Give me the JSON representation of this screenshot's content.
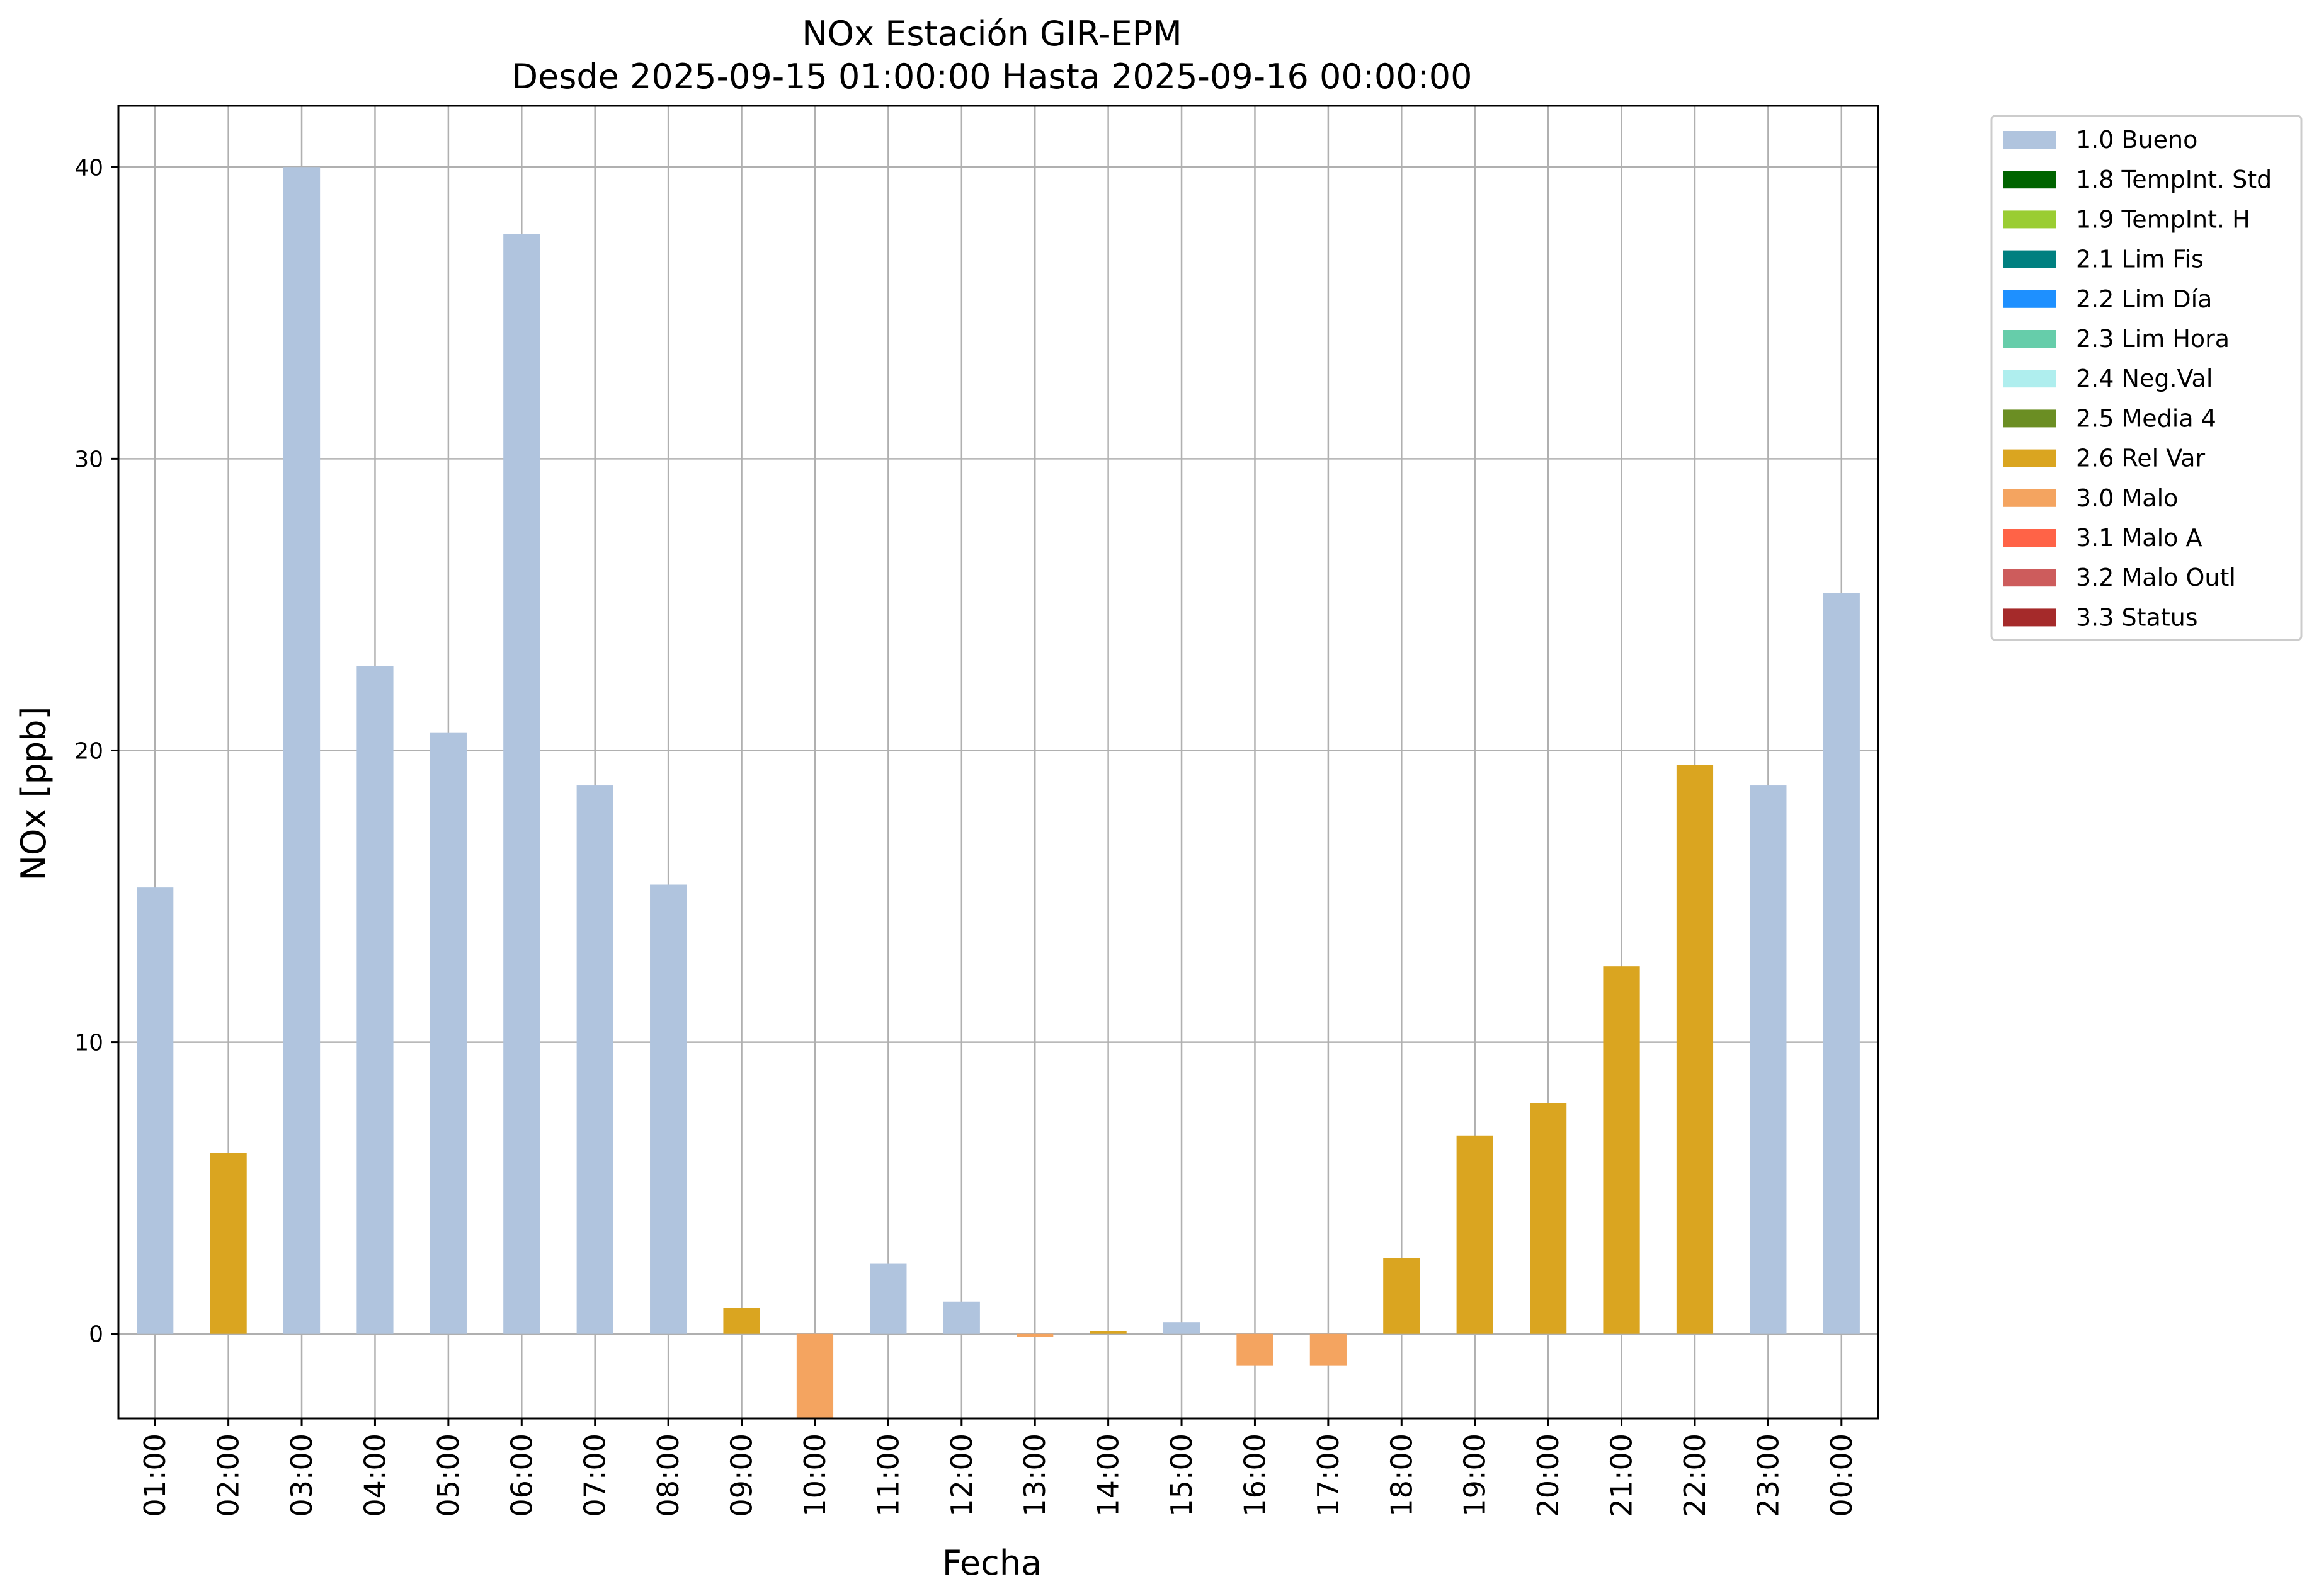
{
  "chart_data": {
    "type": "bar",
    "title": "NOx Estación GIR-EPM",
    "subtitle": "Desde 2025-09-15 01:00:00 Hasta 2025-09-16 00:00:00",
    "xlabel": "Fecha",
    "ylabel": "NOx [ppb]",
    "ylim": [
      -2.9,
      42.1
    ],
    "yticks": [
      0,
      10,
      20,
      30,
      40
    ],
    "grid": true,
    "legend_position": "outside-top-right",
    "categories": [
      "01:00",
      "02:00",
      "03:00",
      "04:00",
      "05:00",
      "06:00",
      "07:00",
      "08:00",
      "09:00",
      "10:00",
      "11:00",
      "12:00",
      "13:00",
      "14:00",
      "15:00",
      "16:00",
      "17:00",
      "18:00",
      "19:00",
      "20:00",
      "21:00",
      "22:00",
      "23:00",
      "00:00"
    ],
    "values": [
      15.3,
      6.2,
      40.0,
      22.9,
      20.6,
      37.7,
      18.8,
      15.4,
      0.9,
      -2.9,
      2.4,
      1.1,
      -0.1,
      0.1,
      0.4,
      -1.1,
      -1.1,
      2.6,
      6.8,
      7.9,
      12.6,
      19.5,
      18.8,
      25.4
    ],
    "flags": [
      "1.0 Bueno",
      "2.6 Rel Var",
      "1.0 Bueno",
      "1.0 Bueno",
      "1.0 Bueno",
      "1.0 Bueno",
      "1.0 Bueno",
      "1.0 Bueno",
      "2.6 Rel Var",
      "3.0 Malo",
      "1.0 Bueno",
      "1.0 Bueno",
      "3.0 Malo",
      "2.6 Rel Var",
      "1.0 Bueno",
      "3.0 Malo",
      "3.0 Malo",
      "2.6 Rel Var",
      "2.6 Rel Var",
      "2.6 Rel Var",
      "2.6 Rel Var",
      "2.6 Rel Var",
      "1.0 Bueno",
      "1.0 Bueno"
    ],
    "legend": [
      {
        "label": "1.0 Bueno",
        "color": "#b0c4de"
      },
      {
        "label": "1.8 TempInt. Std",
        "color": "#006400"
      },
      {
        "label": "1.9 TempInt. H",
        "color": "#9acd32"
      },
      {
        "label": "2.1 Lim Fis",
        "color": "#008080"
      },
      {
        "label": "2.2 Lim Día",
        "color": "#1e90ff"
      },
      {
        "label": "2.3 Lim Hora",
        "color": "#66cdaa"
      },
      {
        "label": "2.4 Neg.Val",
        "color": "#afeeee"
      },
      {
        "label": "2.5 Media 4",
        "color": "#6b8e23"
      },
      {
        "label": "2.6 Rel Var",
        "color": "#daa520"
      },
      {
        "label": "3.0 Malo",
        "color": "#f4a460"
      },
      {
        "label": "3.1 Malo A",
        "color": "#ff6347"
      },
      {
        "label": "3.2 Malo Outl",
        "color": "#cd5c5c"
      },
      {
        "label": "3.3 Status",
        "color": "#a52a2a"
      }
    ]
  }
}
